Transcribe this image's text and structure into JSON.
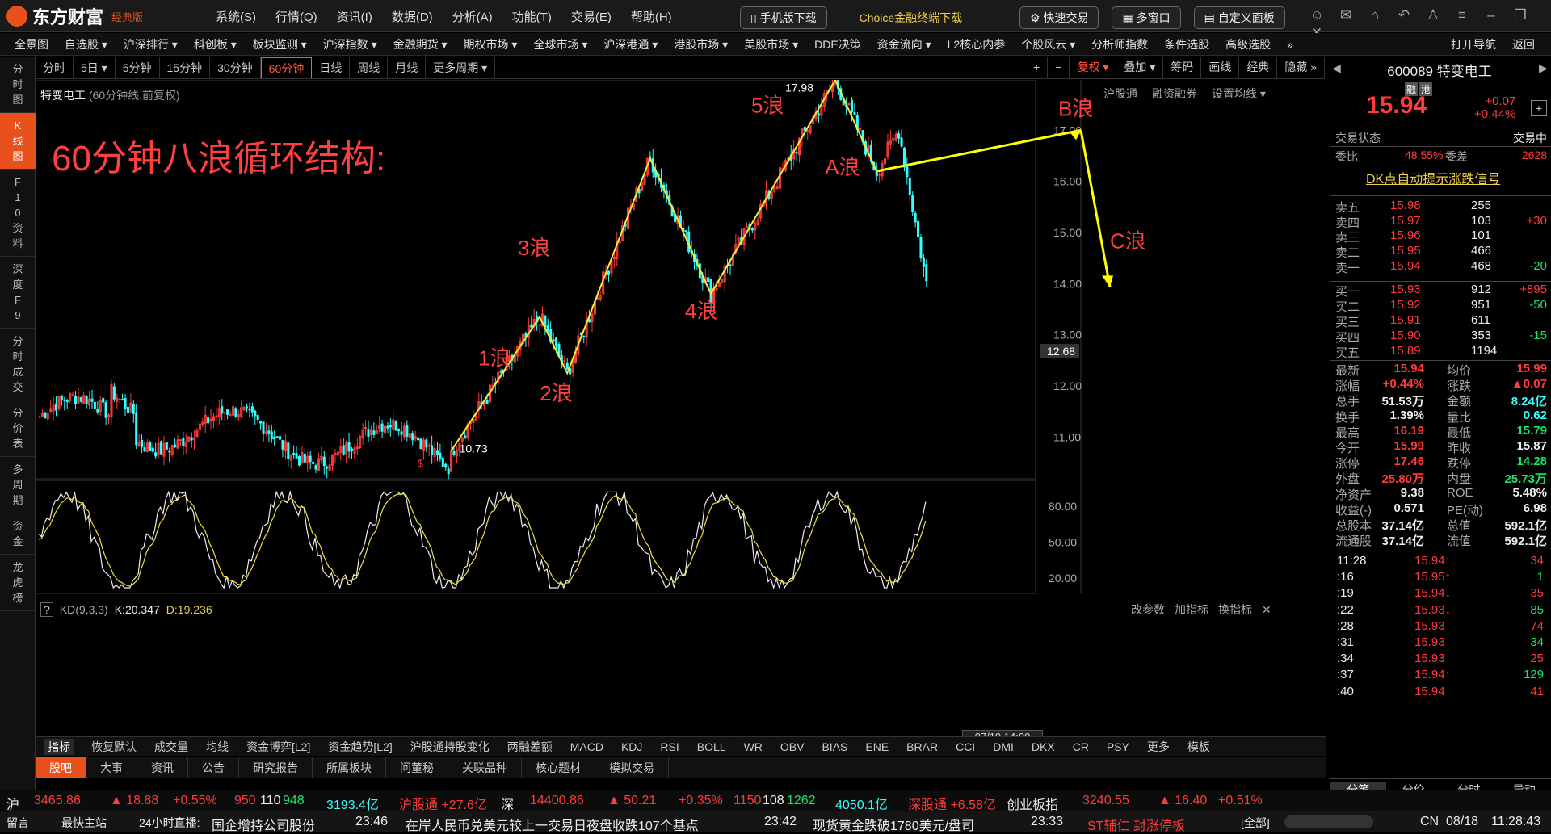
{
  "app": {
    "brand": "东方财富",
    "edition": "经典版"
  },
  "menu": [
    "系统(S)",
    "行情(Q)",
    "资讯(I)",
    "数据(D)",
    "分析(A)",
    "功能(T)",
    "交易(E)",
    "帮助(H)"
  ],
  "title_actions": {
    "mobile": "手机版下载",
    "choice": "Choice金融终端下载",
    "quick_trade": "快速交易",
    "multi_window": "多窗口",
    "custom_panel": "自定义面板"
  },
  "nav": [
    "全景图",
    "自选股 ▾",
    "沪深排行 ▾",
    "科创板 ▾",
    "板块监测 ▾",
    "沪深指数 ▾",
    "金融期货 ▾",
    "期权市场 ▾",
    "全球市场 ▾",
    "沪深港通 ▾",
    "港股市场 ▾",
    "美股市场 ▾",
    "DDE决策",
    "资金流向 ▾",
    "L2核心内参",
    "个股风云 ▾",
    "分析师指数",
    "条件选股",
    "高级选股",
    "»"
  ],
  "nav_right": [
    "打开导航",
    "返回"
  ],
  "periods": [
    "分时",
    "5日 ▾",
    "5分钟",
    "15分钟",
    "30分钟",
    "60分钟",
    "日线",
    "周线",
    "月线",
    "更多周期 ▾"
  ],
  "period_active": "60分钟",
  "chart_tools": [
    "+",
    "−",
    "复权 ▾",
    "叠加 ▾",
    "筹码",
    "画线",
    "经典",
    "隐藏 »"
  ],
  "left_tabs": [
    "分时图",
    "K线图",
    "F10资料",
    "深度F9",
    "分时成交",
    "分价表",
    "多周期",
    "资金",
    "龙虎榜"
  ],
  "chart_header": {
    "name": "特变电工",
    "desc": "(60分钟线,前复权)",
    "links": [
      "沪股通",
      "融资融券",
      "设置均线 ▾"
    ]
  },
  "annotation_title": "60分钟八浪循环结构:",
  "wave_labels": [
    "1浪",
    "2浪",
    "3浪",
    "4浪",
    "5浪",
    "A浪",
    "B浪",
    "C浪"
  ],
  "price_marks": {
    "high": "17.98",
    "low": "10.73",
    "flag": "$"
  },
  "y_axis": [
    "17.00",
    "16.00",
    "15.00",
    "14.00",
    "13.00",
    "12.68",
    "12.00",
    "11.00"
  ],
  "y_axis_current": "12.68",
  "kd": {
    "label": "KD(9,3,3)",
    "k": "K:20.347",
    "d": "D:19.236",
    "links": [
      "改参数",
      "加指标",
      "换指标"
    ],
    "levels": [
      "80.00",
      "50.00",
      "20.00"
    ]
  },
  "x_cursor": "07/19,14:00",
  "indicators": [
    "指标",
    "恢复默认",
    "成交量",
    "均线",
    "资金博弈[L2]",
    "资金趋势[L2]",
    "沪股通持股变化",
    "两融差额",
    "MACD",
    "KDJ",
    "RSI",
    "BOLL",
    "WR",
    "OBV",
    "BIAS",
    "ENE",
    "BRAR",
    "CCI",
    "DMI",
    "DKX",
    "CR",
    "PSY",
    "更多",
    "模板"
  ],
  "tabs": [
    "股吧",
    "大事",
    "资讯",
    "公告",
    "研究报告",
    "所属板块",
    "问董秘",
    "关联品种",
    "核心题材",
    "模拟交易"
  ],
  "stock": {
    "code": "600089",
    "name": "特变电工",
    "badge1": "融",
    "badge2": "港",
    "price": "15.94",
    "change": "+0.07",
    "pct": "+0.44%"
  },
  "trade_status": {
    "label": "交易状态",
    "value": "交易中"
  },
  "weibi": {
    "l1": "委比",
    "v1": "48.55%",
    "l2": "委差",
    "v2": "2628"
  },
  "dk_signal": "DK点自动提示涨跌信号",
  "asks": [
    {
      "lvl": "卖五",
      "p": "15.98",
      "v": "255",
      "d": ""
    },
    {
      "lvl": "卖四",
      "p": "15.97",
      "v": "103",
      "d": "+30"
    },
    {
      "lvl": "卖三",
      "p": "15.96",
      "v": "101",
      "d": ""
    },
    {
      "lvl": "卖二",
      "p": "15.95",
      "v": "466",
      "d": ""
    },
    {
      "lvl": "卖一",
      "p": "15.94",
      "v": "468",
      "d": "-20"
    }
  ],
  "bids": [
    {
      "lvl": "买一",
      "p": "15.93",
      "v": "912",
      "d": "+895"
    },
    {
      "lvl": "买二",
      "p": "15.92",
      "v": "951",
      "d": "-50"
    },
    {
      "lvl": "买三",
      "p": "15.91",
      "v": "611",
      "d": ""
    },
    {
      "lvl": "买四",
      "p": "15.90",
      "v": "353",
      "d": "-15"
    },
    {
      "lvl": "买五",
      "p": "15.89",
      "v": "1194",
      "d": ""
    }
  ],
  "stats": [
    [
      "最新",
      "15.94",
      "均价",
      "15.99"
    ],
    [
      "涨幅",
      "+0.44%",
      "涨跌",
      "▲0.07"
    ],
    [
      "总手",
      "51.53万",
      "金额",
      "8.24亿"
    ],
    [
      "换手",
      "1.39%",
      "量比",
      "0.62"
    ],
    [
      "最高",
      "16.19",
      "最低",
      "15.79"
    ],
    [
      "今开",
      "15.99",
      "昨收",
      "15.87"
    ],
    [
      "涨停",
      "17.46",
      "跌停",
      "14.28"
    ],
    [
      "外盘",
      "25.80万",
      "内盘",
      "25.73万"
    ],
    [
      "净资产",
      "9.38",
      "ROE",
      "5.48%"
    ],
    [
      "收益(-)",
      "0.571",
      "PE(动)",
      "6.98"
    ],
    [
      "总股本",
      "37.14亿",
      "总值",
      "592.1亿"
    ],
    [
      "流通股",
      "37.14亿",
      "流值",
      "592.1亿"
    ]
  ],
  "ticks": [
    [
      "11:28",
      "15.94↑",
      "34"
    ],
    [
      ":16",
      "15.95↑",
      "1"
    ],
    [
      ":19",
      "15.94↓",
      "35"
    ],
    [
      ":22",
      "15.93↓",
      "85"
    ],
    [
      ":28",
      "15.93",
      "74"
    ],
    [
      ":31",
      "15.93",
      "34"
    ],
    [
      ":34",
      "15.93",
      "25"
    ],
    [
      ":37",
      "15.94↑",
      "129"
    ],
    [
      ":40",
      "15.94",
      "41"
    ]
  ],
  "right_tabs": [
    "分笔",
    "分价",
    "分时",
    "异动"
  ],
  "index_bar": {
    "sh": {
      "n": "沪",
      "v": "3465.86",
      "c": "▲ 18.88",
      "p": "+0.55%",
      "a": "950",
      "b": "110",
      "c2": "948",
      "amt": "3193.4亿"
    },
    "hgt": "沪股通 +27.6亿",
    "sz": {
      "n": "深",
      "v": "14400.86",
      "c": "▲ 50.21",
      "p": "+0.35%",
      "a": "1150",
      "b": "108",
      "c2": "1262",
      "amt": "4050.1亿"
    },
    "sgt": "深股通 +6.58亿",
    "cyb": {
      "n": "创业板指",
      "v": "3240.55",
      "c": "▲ 16.40",
      "p": "+0.51%"
    }
  },
  "news": {
    "msg": "留言",
    "quick": "最快主站",
    "live": "24小时直播:",
    "t0": "国企增持公司股份",
    "t1": "23:46",
    "n1": "在岸人民币兑美元较上一交易日夜盘收跌107个基点",
    "t2": "23:42",
    "n2": "现货黄金跌破1780美元/盘司",
    "t3": "23:33",
    "n3": "ST辅仁 封涨停板",
    "all": "[全部]",
    "lang": "CN",
    "date": "08/18",
    "time": "11:28:43"
  },
  "chart_data": {
    "type": "candlestick",
    "title": "特变电工 60分钟",
    "ylim": [
      10.5,
      18.3
    ],
    "wave_points": [
      [
        10.73,
        "start"
      ],
      [
        13.35,
        "1浪"
      ],
      [
        12.25,
        "2浪"
      ],
      [
        16.45,
        "3浪"
      ],
      [
        13.8,
        "4浪"
      ],
      [
        17.98,
        "5浪"
      ],
      [
        16.2,
        "A浪"
      ],
      [
        17.0,
        "B浪"
      ],
      [
        14.0,
        "C浪"
      ]
    ],
    "kd_range": [
      10,
      95
    ]
  }
}
